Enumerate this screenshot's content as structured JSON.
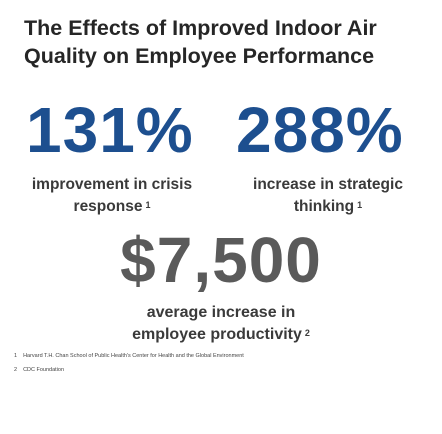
{
  "title": [
    "The Effects of Improved Indoor Air",
    "Quality on Employee Performance"
  ],
  "stats": [
    {
      "value": "131%",
      "label": [
        "improvement in crisis",
        "response"
      ],
      "note": "1"
    },
    {
      "value": "288%",
      "label": [
        "increase in strategic",
        "thinking"
      ],
      "note": "1"
    }
  ],
  "highlight": {
    "value": "$7,500",
    "label": [
      "average increase in",
      "employee productivity"
    ],
    "note": "2"
  },
  "footnotes": [
    {
      "number": "1",
      "text": "Harvard T.H. Chan School of Public Health's Center for Health and the Global Environment"
    },
    {
      "number": "2",
      "text": "CDC Foundation"
    }
  ]
}
